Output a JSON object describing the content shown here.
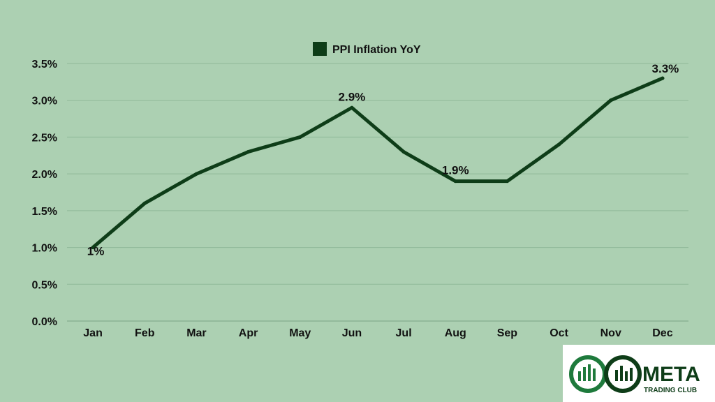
{
  "chart_data": {
    "type": "line",
    "categories": [
      "Jan",
      "Feb",
      "Mar",
      "Apr",
      "May",
      "Jun",
      "Jul",
      "Aug",
      "Sep",
      "Oct",
      "Nov",
      "Dec"
    ],
    "series": [
      {
        "name": "PPI Inflation YoY",
        "values": [
          1.0,
          1.6,
          2.0,
          2.3,
          2.5,
          2.9,
          2.3,
          1.9,
          1.9,
          2.4,
          3.0,
          3.3
        ],
        "color": "#0e3d18"
      }
    ],
    "yticks": [
      "0.0%",
      "0.5%",
      "1.0%",
      "1.5%",
      "2.0%",
      "2.5%",
      "3.0%",
      "3.5%"
    ],
    "ylim": [
      0,
      3.5
    ],
    "grid": true,
    "legend_position": "top-center",
    "data_labels": [
      {
        "index": 0,
        "text": "1%"
      },
      {
        "index": 5,
        "text": "2.9%"
      },
      {
        "index": 7,
        "text": "1.9%"
      },
      {
        "index": 11,
        "text": "3.3%"
      }
    ],
    "background": "#acd0b2",
    "gridline_color": "#8fb898"
  },
  "logo": {
    "name": "META TRADING CLUB",
    "accent": "#1e7a3c",
    "dark": "#0e3d18"
  }
}
